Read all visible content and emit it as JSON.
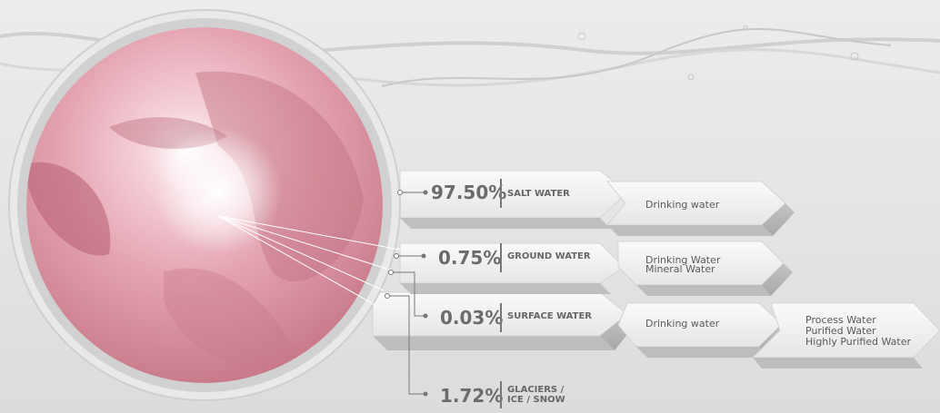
{
  "colors": {
    "salt": "#f4f4f4",
    "ground": "#f6b8c9",
    "surface": "#d9c2c2",
    "glacier": "#c8005f",
    "globe": "#d88a9a"
  },
  "water_types": [
    {
      "percent": "97.50%",
      "label": "SALT WATER",
      "uses": [
        "Drinking water"
      ]
    },
    {
      "percent": "0.75%",
      "label": "GROUND WATER",
      "uses": [
        "Drinking Water",
        "Mineral Water"
      ]
    },
    {
      "percent": "0.03%",
      "label": "SURFACE WATER",
      "uses": [
        "Drinking water"
      ],
      "further_uses": [
        "Process Water",
        "Purified Water",
        "Highly Purified Water"
      ]
    },
    {
      "percent": "1.72%",
      "label_line1": "GLACIERS /",
      "label_line2": "ICE / SNOW"
    }
  ]
}
